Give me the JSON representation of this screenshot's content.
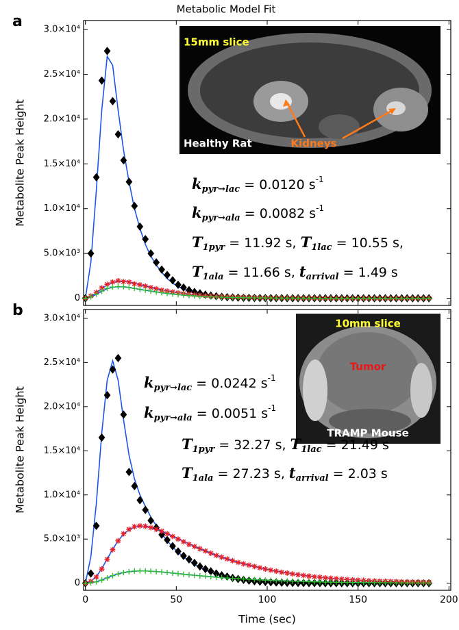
{
  "title": "Metabolic Model Fit",
  "chart_data": [
    {
      "type": "line",
      "panel": "a",
      "ylabel": "Metabolite Peak Height",
      "xlim": [
        -1,
        201
      ],
      "ylim": [
        -800,
        31000
      ],
      "xticks": [
        0,
        50,
        100,
        150,
        200
      ],
      "yticks": [
        0,
        {
          "value": 5000,
          "label": "5.0×10³"
        },
        {
          "value": 10000,
          "label": "1.0×10⁴"
        },
        {
          "value": 15000,
          "label": "1.5×10⁴"
        },
        {
          "value": 20000,
          "label": "2.0×10⁴"
        },
        {
          "value": 25000,
          "label": "2.5×10⁴"
        },
        {
          "value": 30000,
          "label": "3.0×10⁴"
        }
      ],
      "x": [
        0,
        3,
        6,
        9,
        12,
        15,
        18,
        21,
        24,
        27,
        30,
        33,
        36,
        39,
        42,
        45,
        48,
        51,
        54,
        57,
        60,
        63,
        66,
        69,
        72,
        75,
        78,
        81,
        84,
        87,
        90,
        93,
        96,
        99,
        102,
        105,
        108,
        111,
        114,
        117,
        120,
        123,
        126,
        129,
        132,
        135,
        138,
        141,
        144,
        147,
        150,
        153,
        156,
        159,
        162,
        165,
        168,
        171,
        174,
        177,
        180,
        183,
        186,
        189
      ],
      "series": [
        {
          "color": "#1a56e8",
          "values": [
            0,
            4000,
            12000,
            21000,
            27000,
            26000,
            21000,
            16500,
            13000,
            10000,
            7800,
            6000,
            4700,
            3700,
            2900,
            2200,
            1700,
            1300,
            1000,
            780,
            600,
            460,
            350,
            270,
            210,
            160,
            120,
            95,
            75,
            58,
            45,
            35,
            27,
            21,
            16,
            12,
            10,
            8,
            6,
            5,
            4,
            3,
            2,
            2,
            1,
            1,
            1,
            1,
            0,
            0,
            0,
            0,
            0,
            0,
            0,
            0,
            0,
            0,
            0,
            0,
            0,
            0,
            0,
            0
          ]
        },
        {
          "color": "#1a56e8",
          "values": [
            0,
            200,
            600,
            1100,
            1500,
            1750,
            1880,
            1900,
            1820,
            1680,
            1520,
            1370,
            1220,
            1080,
            950,
            830,
            720,
            630,
            540,
            470,
            400,
            345,
            295,
            250,
            215,
            180,
            155,
            130,
            110,
            95,
            80,
            68,
            57,
            48,
            40,
            34,
            28,
            24,
            20,
            17,
            14,
            12,
            10,
            8,
            7,
            6,
            5,
            4,
            3,
            3,
            2,
            2,
            2,
            1,
            1,
            1,
            1,
            1,
            1,
            0,
            0,
            0,
            0,
            0
          ]
        },
        {
          "color": "#1a56e8",
          "values": [
            0,
            140,
            430,
            780,
            1070,
            1230,
            1290,
            1270,
            1200,
            1100,
            990,
            890,
            790,
            700,
            615,
            535,
            465,
            405,
            350,
            300,
            258,
            220,
            188,
            160,
            137,
            117,
            100,
            85,
            72,
            61,
            52,
            44,
            37,
            31,
            26,
            22,
            19,
            16,
            13,
            11,
            9,
            8,
            7,
            6,
            5,
            4,
            3,
            3,
            2,
            2,
            2,
            1,
            1,
            1,
            1,
            1,
            0,
            0,
            0,
            0,
            0,
            0,
            0,
            0
          ]
        },
        {
          "color": "#000000",
          "marker": "diamond",
          "values": [
            0,
            5000,
            13500,
            24300,
            27600,
            22000,
            18300,
            15400,
            13000,
            10300,
            8000,
            6600,
            5000,
            4000,
            3200,
            2600,
            2000,
            1500,
            1200,
            900,
            700,
            550,
            400,
            300,
            220,
            160,
            120,
            90,
            70,
            50,
            40,
            30,
            25,
            20,
            15,
            10,
            10,
            5,
            5,
            0,
            0,
            0,
            0,
            0,
            0,
            0,
            0,
            0,
            0,
            0,
            0,
            0,
            0,
            0,
            0,
            0,
            0,
            0,
            0,
            0,
            0,
            0,
            0,
            0
          ]
        },
        {
          "color": "#e8202a",
          "marker": "asterisk",
          "values": [
            0,
            250,
            650,
            1150,
            1550,
            1800,
            1950,
            1850,
            1800,
            1600,
            1500,
            1350,
            1200,
            1050,
            900,
            800,
            700,
            600,
            520,
            450,
            390,
            340,
            290,
            250,
            210,
            180,
            150,
            130,
            110,
            95,
            80,
            70,
            60,
            50,
            40,
            35,
            30,
            25,
            20,
            15,
            15,
            10,
            10,
            5,
            5,
            0,
            0,
            0,
            0,
            0,
            0,
            0,
            0,
            0,
            0,
            0,
            0,
            0,
            0,
            0,
            0,
            0,
            0,
            0
          ]
        },
        {
          "color": "#2fc02f",
          "marker": "plus",
          "values": [
            0,
            150,
            450,
            800,
            1100,
            1250,
            1300,
            1280,
            1200,
            1100,
            1000,
            900,
            800,
            700,
            620,
            540,
            470,
            410,
            350,
            300,
            260,
            220,
            190,
            160,
            140,
            120,
            100,
            85,
            70,
            60,
            50,
            45,
            40,
            30,
            25,
            20,
            20,
            15,
            10,
            10,
            5,
            5,
            5,
            0,
            0,
            0,
            0,
            0,
            0,
            0,
            0,
            0,
            0,
            0,
            0,
            0,
            0,
            0,
            0,
            0,
            0,
            0,
            0,
            0
          ]
        }
      ],
      "image_labels": [
        {
          "text": "15mm slice",
          "color": "#ffff33"
        },
        {
          "text": "Healthy Rat",
          "color": "#ffffff"
        },
        {
          "text": "Kidneys",
          "color": "#ff7a1a"
        }
      ],
      "equations": [
        [
          {
            "symbol": "k",
            "subscript": "pyr→lac",
            "rest": " = 0.0120 s",
            "superscript": "-1"
          }
        ],
        [
          {
            "symbol": "k",
            "subscript": "pyr→ala",
            "rest": " = 0.0082 s",
            "superscript": "-1"
          }
        ],
        [
          {
            "symbol": "T",
            "subscript": "1pyr",
            "rest": " = 11.92 s, "
          },
          {
            "symbol": "T",
            "subscript": "1lac",
            "rest": " = 10.55 s,"
          }
        ],
        [
          {
            "symbol": "T",
            "subscript": "1ala",
            "rest": " = 11.66 s, "
          },
          {
            "symbol": "t",
            "subscript": "arrival",
            "rest": " = 1.49 s"
          }
        ]
      ]
    },
    {
      "type": "line",
      "panel": "b",
      "ylabel": "Metabolite Peak Height",
      "xlabel": "Time (sec)",
      "xlim": [
        -1,
        201
      ],
      "ylim": [
        -800,
        31000
      ],
      "xticks": [
        0,
        50,
        100,
        150,
        200
      ],
      "yticks": [
        0,
        {
          "value": 5000,
          "label": "5.0×10³"
        },
        {
          "value": 10000,
          "label": "1.0×10⁴"
        },
        {
          "value": 15000,
          "label": "1.5×10⁴"
        },
        {
          "value": 20000,
          "label": "2.0×10⁴"
        },
        {
          "value": 25000,
          "label": "2.5×10⁴"
        },
        {
          "value": 30000,
          "label": "3.0×10⁴"
        }
      ],
      "x": [
        0,
        3,
        6,
        9,
        12,
        15,
        18,
        21,
        24,
        27,
        30,
        33,
        36,
        39,
        42,
        45,
        48,
        51,
        54,
        57,
        60,
        63,
        66,
        69,
        72,
        75,
        78,
        81,
        84,
        87,
        90,
        93,
        96,
        99,
        102,
        105,
        108,
        111,
        114,
        117,
        120,
        123,
        126,
        129,
        132,
        135,
        138,
        141,
        144,
        147,
        150,
        153,
        156,
        159,
        162,
        165,
        168,
        171,
        174,
        177,
        180,
        183,
        186,
        189
      ],
      "series": [
        {
          "color": "#1a56e8",
          "values": [
            0,
            3000,
            9000,
            17000,
            23000,
            25200,
            23000,
            18500,
            14500,
            11800,
            10000,
            8700,
            7500,
            6500,
            5600,
            4800,
            4100,
            3500,
            3000,
            2550,
            2150,
            1800,
            1500,
            1250,
            1050,
            870,
            720,
            590,
            480,
            390,
            310,
            250,
            200,
            160,
            125,
            100,
            80,
            60,
            48,
            38,
            30,
            24,
            19,
            15,
            12,
            9,
            7,
            5,
            4,
            3,
            2,
            2,
            1,
            1,
            1,
            1,
            0,
            0,
            0,
            0,
            0,
            0,
            0,
            0
          ]
        },
        {
          "color": "#1a56e8",
          "values": [
            0,
            220,
            750,
            1650,
            2750,
            3850,
            4800,
            5550,
            6050,
            6350,
            6480,
            6450,
            6320,
            6120,
            5880,
            5610,
            5330,
            5040,
            4750,
            4460,
            4180,
            3910,
            3650,
            3400,
            3170,
            2950,
            2750,
            2560,
            2380,
            2210,
            2050,
            1900,
            1760,
            1630,
            1500,
            1380,
            1270,
            1170,
            1070,
            980,
            890,
            810,
            740,
            670,
            610,
            560,
            510,
            465,
            425,
            385,
            350,
            320,
            290,
            265,
            240,
            220,
            200,
            182,
            166,
            151,
            138,
            126,
            115,
            105
          ]
        },
        {
          "color": "#1a56e8",
          "values": [
            0,
            60,
            170,
            370,
            620,
            860,
            1060,
            1210,
            1310,
            1370,
            1400,
            1390,
            1360,
            1320,
            1270,
            1210,
            1150,
            1090,
            1020,
            960,
            900,
            840,
            785,
            735,
            685,
            640,
            595,
            555,
            515,
            480,
            445,
            412,
            382,
            354,
            328,
            304,
            282,
            261,
            242,
            224,
            207,
            192,
            178,
            165,
            153,
            142,
            131,
            121,
            112,
            104,
            96,
            89,
            82,
            76,
            70,
            65,
            60,
            56,
            52,
            48,
            44,
            41,
            38,
            35
          ]
        },
        {
          "color": "#000000",
          "marker": "diamond",
          "values": [
            0,
            1100,
            6500,
            16500,
            21300,
            24200,
            25500,
            19100,
            12600,
            11000,
            9400,
            8300,
            7100,
            6300,
            5500,
            4900,
            4200,
            3600,
            3100,
            2700,
            2300,
            1900,
            1600,
            1350,
            1100,
            900,
            750,
            600,
            480,
            380,
            300,
            230,
            180,
            140,
            110,
            80,
            60,
            45,
            35,
            25,
            20,
            15,
            10,
            10,
            5,
            5,
            0,
            0,
            0,
            0,
            0,
            0,
            0,
            0,
            0,
            0,
            0,
            0,
            0,
            0,
            0,
            0,
            0,
            0
          ]
        },
        {
          "color": "#e8202a",
          "marker": "asterisk",
          "values": [
            0,
            200,
            700,
            1600,
            2700,
            3800,
            4800,
            5600,
            6100,
            6400,
            6500,
            6450,
            6300,
            6100,
            5900,
            5600,
            5300,
            5000,
            4700,
            4400,
            4150,
            3900,
            3650,
            3400,
            3150,
            2950,
            2750,
            2550,
            2350,
            2200,
            2050,
            1900,
            1750,
            1600,
            1480,
            1360,
            1250,
            1150,
            1050,
            960,
            880,
            800,
            730,
            670,
            610,
            560,
            510,
            460,
            420,
            380,
            350,
            320,
            290,
            260,
            240,
            220,
            200,
            180,
            160,
            150,
            140,
            130,
            120,
            110
          ]
        },
        {
          "color": "#2fc02f",
          "marker": "plus",
          "values": [
            0,
            50,
            150,
            350,
            600,
            850,
            1050,
            1200,
            1300,
            1380,
            1400,
            1390,
            1360,
            1310,
            1270,
            1210,
            1140,
            1080,
            1010,
            950,
            890,
            840,
            790,
            730,
            680,
            640,
            590,
            550,
            510,
            480,
            450,
            410,
            380,
            350,
            320,
            300,
            280,
            250,
            230,
            210,
            190,
            180,
            160,
            150,
            130,
            120,
            110,
            100,
            90,
            80,
            75,
            70,
            65,
            60,
            55,
            50,
            45,
            40,
            35,
            33,
            30,
            28,
            26,
            24
          ]
        }
      ],
      "image_labels": [
        {
          "text": "10mm slice",
          "color": "#ffff33"
        },
        {
          "text": "Tumor",
          "color": "#e81818"
        },
        {
          "text": "TRAMP Mouse",
          "color": "#ffffff"
        }
      ],
      "equations": [
        [
          {
            "symbol": "k",
            "subscript": "pyr→lac",
            "rest": " = 0.0242 s",
            "superscript": "-1"
          }
        ],
        [
          {
            "symbol": "k",
            "subscript": "pyr→ala",
            "rest": " = 0.0051 s",
            "superscript": "-1"
          }
        ],
        [
          {
            "symbol": "T",
            "subscript": "1pyr",
            "rest": " = 32.27 s, "
          },
          {
            "symbol": "T",
            "subscript": "1lac",
            "rest": " = 21.49 s"
          }
        ],
        [
          {
            "symbol": "T",
            "subscript": "1ala",
            "rest": " = 27.23 s, "
          },
          {
            "symbol": "t",
            "subscript": "arrival",
            "rest": " = 2.03 s"
          }
        ]
      ]
    }
  ]
}
